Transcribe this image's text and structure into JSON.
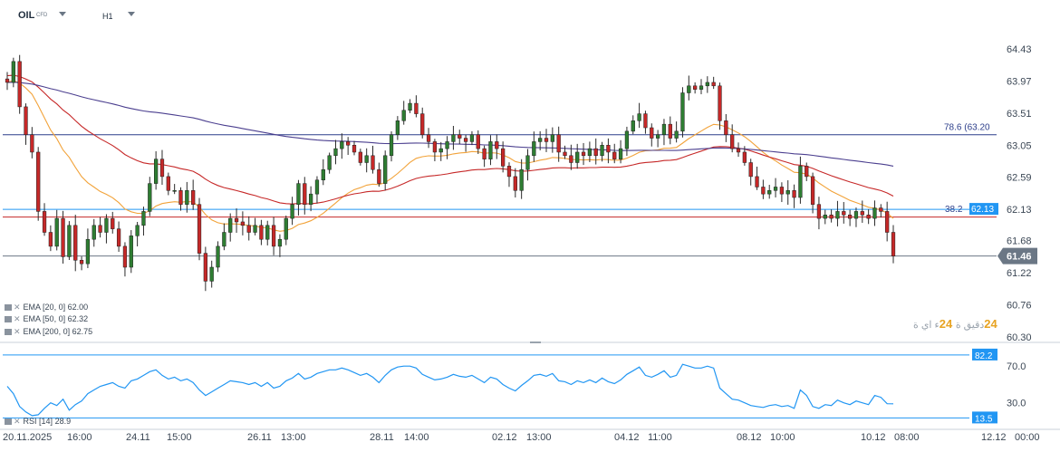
{
  "header": {
    "symbol": "OIL",
    "symbol_type": "CFD",
    "timeframe": "H1"
  },
  "indicators": [
    {
      "label": "EMA [20, 0]",
      "value": "62.00",
      "color": "#f2a33a"
    },
    {
      "label": "EMA [50, 0]",
      "value": "62.32",
      "color": "#c62828"
    },
    {
      "label": "EMA [200, 0]",
      "value": "62.75",
      "color": "#4b3f8f"
    }
  ],
  "rsi_legend": {
    "label": "RSI [14]",
    "value": "28.9"
  },
  "watermark": {
    "brand": "24",
    "text": "دقيق ة",
    "brand2": "24",
    "text2": "ء اي ة"
  },
  "chart_data": [
    {
      "type": "candlestick",
      "title": "OIL CFD H1",
      "y_ticks": [
        "64.43",
        "63.97",
        "63.51",
        "63.05",
        "62.59",
        "62.13",
        "61.68",
        "61.22",
        "60.76",
        "60.30"
      ],
      "ylim": [
        60.3,
        64.43
      ],
      "x_ticks": [
        "20.11.2025",
        "16:00",
        "24.11",
        "15:00",
        "26.11",
        "13:00",
        "28.11",
        "14:00",
        "02.12",
        "13:00",
        "04.12",
        "11:00",
        "08.12",
        "10:00",
        "10.12",
        "08:00",
        "12.12",
        "00:00"
      ],
      "current_price": "61.46",
      "current_price_value": 61.46,
      "fib_levels": [
        {
          "label": "78.6 (63.20",
          "value": 63.2,
          "color": "#2c3e8a"
        },
        {
          "label": "38.2",
          "value": 62.13,
          "tag": "62.13",
          "color": "#2196f3"
        }
      ],
      "horizontal_levels": [
        {
          "value": 62.02,
          "color": "#c62828"
        },
        {
          "value": 61.46,
          "color": "#6b7785"
        }
      ],
      "closes": [
        63.95,
        64.25,
        63.6,
        63.2,
        62.95,
        62.1,
        61.8,
        61.6,
        62.0,
        61.45,
        61.9,
        61.4,
        61.35,
        61.7,
        61.9,
        61.8,
        62.0,
        61.85,
        61.6,
        61.3,
        61.75,
        61.9,
        62.1,
        62.5,
        62.85,
        62.6,
        62.4,
        62.4,
        62.2,
        62.4,
        62.2,
        61.5,
        61.1,
        61.3,
        61.6,
        61.8,
        62.0,
        61.95,
        61.9,
        61.8,
        61.9,
        61.7,
        61.9,
        61.6,
        61.7,
        62.0,
        62.2,
        62.5,
        62.2,
        62.35,
        62.55,
        62.7,
        62.9,
        63.0,
        63.1,
        63.05,
        62.95,
        62.8,
        62.9,
        62.7,
        62.5,
        62.9,
        63.2,
        63.4,
        63.55,
        63.65,
        63.5,
        63.2,
        63.1,
        62.95,
        63.0,
        63.1,
        63.2,
        63.15,
        63.1,
        63.2,
        63.0,
        62.85,
        63.1,
        63.0,
        62.75,
        62.6,
        62.4,
        62.7,
        62.9,
        63.1,
        63.15,
        63.1,
        63.2,
        62.95,
        62.9,
        62.8,
        62.95,
        62.9,
        63.0,
        62.9,
        63.05,
        62.95,
        62.85,
        63.0,
        63.25,
        63.4,
        63.5,
        63.3,
        63.15,
        63.2,
        63.35,
        63.15,
        63.25,
        63.8,
        63.9,
        63.85,
        63.9,
        63.95,
        63.9,
        63.4,
        63.2,
        63.0,
        62.95,
        62.8,
        62.6,
        62.45,
        62.35,
        62.4,
        62.45,
        62.35,
        62.4,
        62.3,
        62.75,
        62.6,
        62.2,
        62.0,
        62.05,
        62.0,
        62.1,
        62.05,
        62.0,
        62.1,
        62.05,
        62.0,
        62.15,
        62.1,
        61.8,
        61.46
      ],
      "ema20_final": 62.0,
      "ema50_final": 62.32,
      "ema200_final": 62.75
    },
    {
      "type": "line",
      "title": "RSI [14]",
      "y_ticks": [
        "70.0",
        "30.0"
      ],
      "ylim": [
        5,
        90
      ],
      "levels": [
        {
          "tag": "82.2",
          "value": 82.2
        },
        {
          "tag": "13.5",
          "value": 13.5
        }
      ],
      "values": [
        48,
        40,
        26,
        20,
        16,
        17,
        24,
        30,
        27,
        34,
        22,
        28,
        32,
        40,
        44,
        48,
        50,
        52,
        48,
        46,
        54,
        56,
        60,
        64,
        66,
        60,
        56,
        58,
        54,
        56,
        52,
        44,
        38,
        42,
        46,
        50,
        54,
        53,
        52,
        50,
        52,
        48,
        52,
        46,
        48,
        54,
        57,
        62,
        56,
        58,
        62,
        64,
        66,
        66,
        68,
        66,
        63,
        60,
        62,
        58,
        52,
        60,
        66,
        69,
        70,
        70,
        68,
        61,
        58,
        55,
        56,
        58,
        61,
        59,
        58,
        60,
        56,
        52,
        58,
        56,
        50,
        46,
        43,
        49,
        54,
        60,
        61,
        59,
        62,
        54,
        53,
        50,
        54,
        52,
        55,
        52,
        57,
        53,
        51,
        55,
        61,
        65,
        69,
        60,
        58,
        61,
        65,
        58,
        60,
        72,
        70,
        68,
        68,
        70,
        68,
        46,
        40,
        34,
        33,
        30,
        27,
        26,
        25,
        27,
        28,
        26,
        27,
        24,
        44,
        38,
        26,
        24,
        28,
        27,
        33,
        30,
        28,
        32,
        30,
        28,
        38,
        36,
        29,
        28.9
      ]
    }
  ]
}
